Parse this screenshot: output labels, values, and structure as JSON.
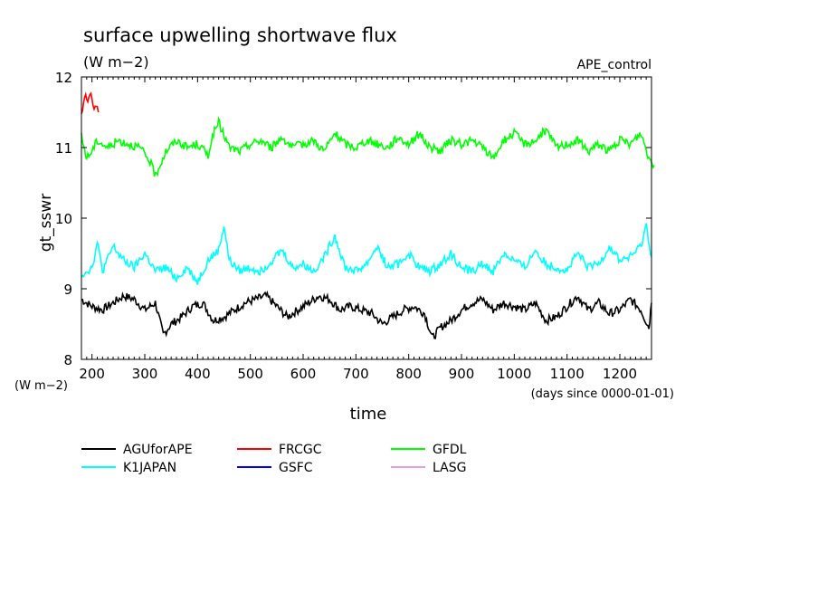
{
  "chart_data": {
    "type": "line",
    "title": "surface upwelling shortwave flux",
    "units": "(W m−2)",
    "ylabel": "gt_sswr",
    "xlabel": "time",
    "xunits": "(days since 0000-01-01)",
    "yunits_bottom": "(W m−2)",
    "experiment": "APE_control",
    "xlim": [
      180,
      1260
    ],
    "ylim": [
      8,
      12
    ],
    "xticks": [
      200,
      300,
      400,
      500,
      600,
      700,
      800,
      900,
      1000,
      1100,
      1200
    ],
    "yticks": [
      8,
      9,
      10,
      11,
      12
    ],
    "series": [
      {
        "name": "AGUforAPE",
        "color": "#000000",
        "x": [
          180,
          200,
          220,
          240,
          260,
          280,
          300,
          320,
          335,
          350,
          370,
          390,
          410,
          430,
          450,
          470,
          490,
          510,
          530,
          550,
          570,
          590,
          610,
          630,
          650,
          670,
          690,
          710,
          730,
          750,
          770,
          790,
          810,
          830,
          845,
          860,
          880,
          900,
          920,
          940,
          960,
          980,
          1000,
          1020,
          1040,
          1060,
          1080,
          1100,
          1120,
          1140,
          1160,
          1180,
          1200,
          1220,
          1240,
          1255,
          1260
        ],
        "y": [
          8.85,
          8.75,
          8.7,
          8.8,
          8.9,
          8.85,
          8.7,
          8.8,
          8.35,
          8.5,
          8.6,
          8.75,
          8.8,
          8.55,
          8.6,
          8.7,
          8.8,
          8.85,
          8.9,
          8.75,
          8.6,
          8.7,
          8.8,
          8.9,
          8.85,
          8.7,
          8.75,
          8.7,
          8.65,
          8.5,
          8.6,
          8.7,
          8.75,
          8.65,
          8.3,
          8.45,
          8.55,
          8.7,
          8.8,
          8.85,
          8.7,
          8.8,
          8.75,
          8.7,
          8.8,
          8.55,
          8.6,
          8.75,
          8.9,
          8.7,
          8.8,
          8.65,
          8.7,
          8.85,
          8.7,
          8.45,
          8.8
        ]
      },
      {
        "name": "FRCGC",
        "color": "#ff0000",
        "x": [
          180,
          184,
          188,
          192,
          196,
          200,
          204,
          208,
          212
        ],
        "y": [
          11.45,
          11.6,
          11.72,
          11.65,
          11.75,
          11.7,
          11.55,
          11.62,
          11.5
        ]
      },
      {
        "name": "GFDL",
        "color": "#00ff00",
        "x": [
          180,
          190,
          200,
          210,
          230,
          250,
          270,
          290,
          310,
          320,
          340,
          360,
          380,
          400,
          420,
          430,
          440,
          460,
          480,
          500,
          520,
          540,
          560,
          580,
          600,
          620,
          640,
          660,
          680,
          700,
          720,
          740,
          760,
          780,
          800,
          820,
          840,
          860,
          880,
          900,
          920,
          940,
          960,
          980,
          1000,
          1020,
          1040,
          1060,
          1080,
          1100,
          1120,
          1140,
          1160,
          1180,
          1200,
          1220,
          1240,
          1255,
          1265
        ],
        "y": [
          11.15,
          10.85,
          10.95,
          11.1,
          11.0,
          11.1,
          11.05,
          11.0,
          10.8,
          10.6,
          10.95,
          11.1,
          11.0,
          11.05,
          10.9,
          11.2,
          11.35,
          11.0,
          10.95,
          11.05,
          11.1,
          11.0,
          11.15,
          11.0,
          11.05,
          11.1,
          10.95,
          11.2,
          11.05,
          11.0,
          11.1,
          11.05,
          11.0,
          11.15,
          11.05,
          11.2,
          11.0,
          10.95,
          11.1,
          11.05,
          11.1,
          11.0,
          10.85,
          11.1,
          11.2,
          11.05,
          11.1,
          11.25,
          11.0,
          11.05,
          11.1,
          10.95,
          11.05,
          10.95,
          11.1,
          11.05,
          11.2,
          10.85,
          10.75
        ]
      },
      {
        "name": "K1JAPAN",
        "color": "#00ffff",
        "x": [
          180,
          200,
          210,
          220,
          240,
          260,
          280,
          300,
          320,
          340,
          360,
          380,
          400,
          420,
          440,
          450,
          460,
          480,
          500,
          520,
          540,
          560,
          580,
          600,
          620,
          640,
          660,
          680,
          700,
          720,
          740,
          760,
          780,
          800,
          820,
          840,
          860,
          880,
          900,
          920,
          940,
          960,
          980,
          1000,
          1020,
          1040,
          1060,
          1080,
          1100,
          1120,
          1140,
          1160,
          1180,
          1200,
          1220,
          1240,
          1250,
          1260
        ],
        "y": [
          9.2,
          9.3,
          9.65,
          9.25,
          9.6,
          9.4,
          9.3,
          9.5,
          9.25,
          9.3,
          9.15,
          9.3,
          9.1,
          9.4,
          9.55,
          9.9,
          9.4,
          9.25,
          9.3,
          9.25,
          9.4,
          9.55,
          9.3,
          9.35,
          9.25,
          9.45,
          9.75,
          9.3,
          9.25,
          9.35,
          9.6,
          9.3,
          9.35,
          9.5,
          9.3,
          9.25,
          9.35,
          9.5,
          9.3,
          9.25,
          9.35,
          9.25,
          9.5,
          9.4,
          9.3,
          9.55,
          9.35,
          9.3,
          9.25,
          9.5,
          9.3,
          9.35,
          9.6,
          9.4,
          9.45,
          9.6,
          9.9,
          9.45
        ]
      },
      {
        "name": "GSFC",
        "color": "#0000ff",
        "x": [],
        "y": []
      },
      {
        "name": "LASG",
        "color": "#e0a0e0",
        "x": [],
        "y": []
      }
    ]
  }
}
